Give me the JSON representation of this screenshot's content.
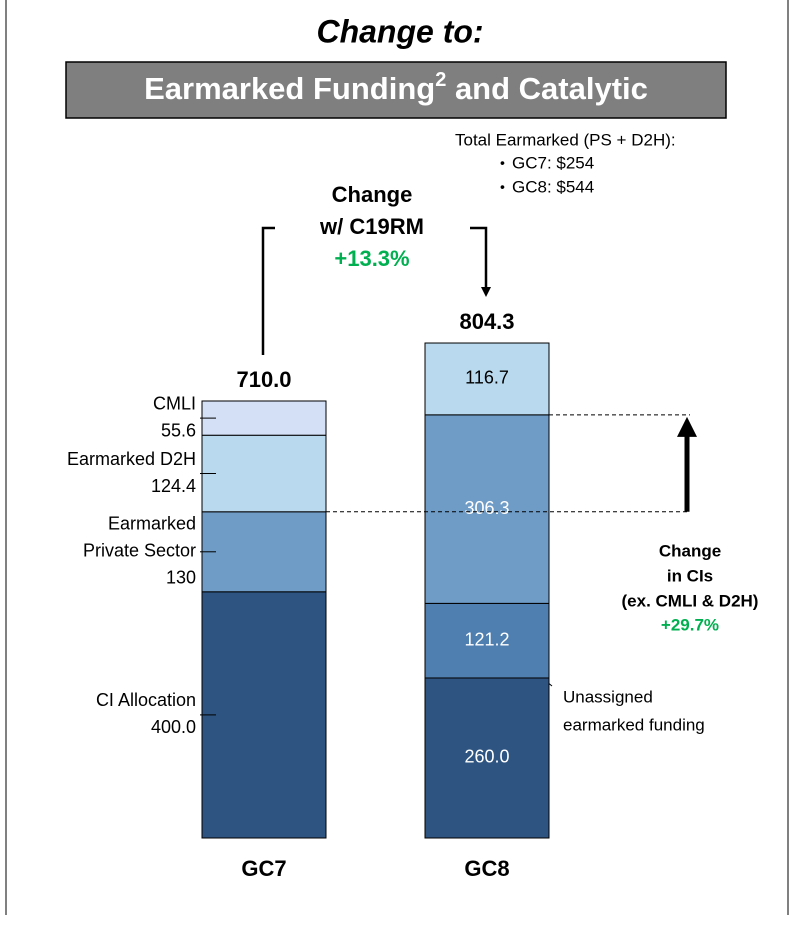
{
  "chart_data": {
    "type": "stacked_bar",
    "title": "Change to:",
    "banner": {
      "text": "Earmarked Funding",
      "superscript": "2",
      "suffix": " and Catalytic"
    },
    "note": {
      "heading": "Total Earmarked (PS + D2H):",
      "items": [
        "GC7: $254",
        "GC8: $544"
      ]
    },
    "change_annotation": {
      "lines": [
        "Change",
        "w/ C19RM"
      ],
      "value": "+13.3%"
    },
    "ci_annotation": {
      "lines": [
        "Change",
        "in CIs",
        "(ex. CMLI & D2H)"
      ],
      "value": "+29.7%"
    },
    "unassigned_annotation": {
      "lines": [
        "Unassigned",
        "earmarked funding"
      ]
    },
    "bars": [
      {
        "category": "GC7",
        "total": 710.0,
        "total_label": "710.0",
        "labels_outside": true,
        "segments": [
          {
            "label_lines": [
              "CI Allocation"
            ],
            "value": 400.0,
            "value_label": "400.0",
            "color": "#2e5582"
          },
          {
            "label_lines": [
              "Earmarked",
              "Private Sector"
            ],
            "value": 130,
            "color": "#6f9cc7"
          },
          {
            "label_lines": [
              "Earmarked D2H"
            ],
            "value": 124.4,
            "color": "#b8d9ee"
          },
          {
            "label_lines": [
              "CMLI"
            ],
            "value": 55.6,
            "color": "#d4e0f5"
          }
        ]
      },
      {
        "category": "GC8",
        "total": 804.3,
        "total_label": "804.3",
        "labels_outside": false,
        "segments": [
          {
            "value": 260.0,
            "value_label": "260.0",
            "color": "#2e5582"
          },
          {
            "value": 121.2,
            "color": "#4f7fb0"
          },
          {
            "value": 306.3,
            "color": "#6f9cc7"
          },
          {
            "value": 116.7,
            "color": "#b8d9ee"
          }
        ]
      }
    ]
  }
}
